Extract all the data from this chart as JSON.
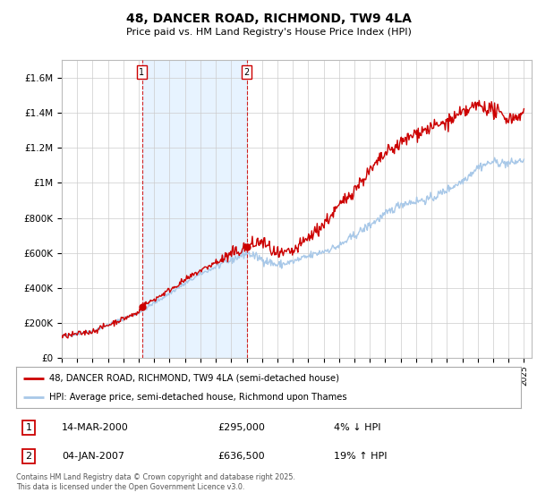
{
  "title": "48, DANCER ROAD, RICHMOND, TW9 4LA",
  "subtitle": "Price paid vs. HM Land Registry's House Price Index (HPI)",
  "legend_entry1": "48, DANCER ROAD, RICHMOND, TW9 4LA (semi-detached house)",
  "legend_entry2": "HPI: Average price, semi-detached house, Richmond upon Thames",
  "annotation1_label": "1",
  "annotation1_date": "14-MAR-2000",
  "annotation1_price": "£295,000",
  "annotation1_hpi": "4% ↓ HPI",
  "annotation2_label": "2",
  "annotation2_date": "04-JAN-2007",
  "annotation2_price": "£636,500",
  "annotation2_hpi": "19% ↑ HPI",
  "footer": "Contains HM Land Registry data © Crown copyright and database right 2025.\nThis data is licensed under the Open Government Licence v3.0.",
  "hpi_color": "#a8c8e8",
  "price_color": "#cc0000",
  "vline_color": "#cc0000",
  "shade_color": "#ddeeff",
  "background_color": "#ffffff",
  "grid_color": "#cccccc",
  "ylim": [
    0,
    1700000
  ],
  "yticks": [
    0,
    200000,
    400000,
    600000,
    800000,
    1000000,
    1200000,
    1400000,
    1600000
  ],
  "ytick_labels": [
    "£0",
    "£200K",
    "£400K",
    "£600K",
    "£800K",
    "£1M",
    "£1.2M",
    "£1.4M",
    "£1.6M"
  ],
  "vline1_x": 2000.2,
  "vline2_x": 2007.0,
  "sale1_x": 2000.2,
  "sale1_y": 295000,
  "sale2_x": 2007.0,
  "sale2_y": 636500,
  "xlim_min": 1995.0,
  "xlim_max": 2025.5
}
